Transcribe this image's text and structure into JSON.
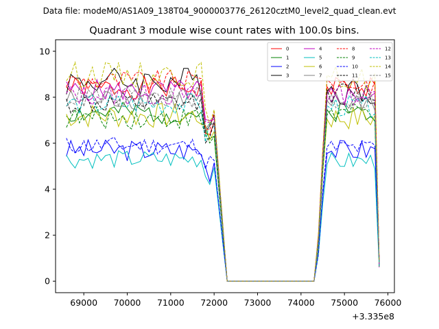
{
  "chart_data": {
    "type": "line",
    "suptitle": "Data file: modeM0/AS1A09_138T04_9000003776_26120cztM0_level2_quad_clean.evt",
    "title": "Quadrant 3 module wise count rates with 100.0s bins.",
    "xlabel": "",
    "ylabel": "",
    "x_offset_label": "+3.335e8",
    "xlim": [
      68350,
      76150
    ],
    "ylim": [
      -0.5,
      10.5
    ],
    "x_ticks": [
      69000,
      70000,
      71000,
      72000,
      73000,
      74000,
      75000,
      76000
    ],
    "y_ticks": [
      0,
      2,
      4,
      6,
      8,
      10
    ],
    "x_tick_labels": [
      "69000",
      "70000",
      "71000",
      "72000",
      "73000",
      "74000",
      "75000",
      "76000"
    ],
    "y_tick_labels": [
      "0",
      "2",
      "4",
      "6",
      "8",
      "10"
    ],
    "legend_position": "top-right",
    "series": [
      {
        "name": "0",
        "color": "#ff0000",
        "dash": "solid",
        "level1": 8.4,
        "level2": 8.5,
        "dip": 6.6,
        "amp": 0.3,
        "seed": 1
      },
      {
        "name": "1",
        "color": "#008000",
        "dash": "solid",
        "level1": 7.3,
        "level2": 7.4,
        "dip": 6.0,
        "amp": 0.3,
        "seed": 2
      },
      {
        "name": "2",
        "color": "#0000ff",
        "dash": "solid",
        "level1": 5.7,
        "level2": 5.7,
        "dip": 4.9,
        "amp": 0.3,
        "seed": 3
      },
      {
        "name": "3",
        "color": "#000000",
        "dash": "solid",
        "level1": 8.7,
        "level2": 8.3,
        "dip": 6.9,
        "amp": 0.4,
        "seed": 4
      },
      {
        "name": "4",
        "color": "#bf00bf",
        "dash": "solid",
        "level1": 8.3,
        "level2": 8.1,
        "dip": 6.7,
        "amp": 0.3,
        "seed": 5
      },
      {
        "name": "5",
        "color": "#00bfbf",
        "dash": "solid",
        "level1": 5.3,
        "level2": 5.2,
        "dip": 4.7,
        "amp": 0.25,
        "seed": 6
      },
      {
        "name": "6",
        "color": "#bfbf00",
        "dash": "solid",
        "level1": 7.2,
        "level2": 7.1,
        "dip": 6.2,
        "amp": 0.35,
        "seed": 7
      },
      {
        "name": "7",
        "color": "#808080",
        "dash": "solid",
        "level1": 7.9,
        "level2": 7.8,
        "dip": 6.5,
        "amp": 0.3,
        "seed": 8
      },
      {
        "name": "8",
        "color": "#ff0000",
        "dash": "dashed",
        "level1": 8.7,
        "level2": 8.6,
        "dip": 7.0,
        "amp": 0.3,
        "seed": 9
      },
      {
        "name": "9",
        "color": "#008000",
        "dash": "dashed",
        "level1": 7.1,
        "level2": 7.3,
        "dip": 6.0,
        "amp": 0.3,
        "seed": 10
      },
      {
        "name": "10",
        "color": "#0000ff",
        "dash": "dashed",
        "level1": 5.9,
        "level2": 5.8,
        "dip": 5.0,
        "amp": 0.25,
        "seed": 11
      },
      {
        "name": "11",
        "color": "#000000",
        "dash": "dashed",
        "level1": 7.7,
        "level2": 8.2,
        "dip": 6.6,
        "amp": 0.3,
        "seed": 12
      },
      {
        "name": "12",
        "color": "#bf00bf",
        "dash": "dashed",
        "level1": 8.1,
        "level2": 8.1,
        "dip": 6.8,
        "amp": 0.3,
        "seed": 13
      },
      {
        "name": "13",
        "color": "#00bfbf",
        "dash": "dashed",
        "level1": 7.7,
        "level2": 7.6,
        "dip": 6.4,
        "amp": 0.3,
        "seed": 14
      },
      {
        "name": "14",
        "color": "#bfbf00",
        "dash": "dashed",
        "level1": 9.0,
        "level2": 8.8,
        "dip": 7.1,
        "amp": 0.35,
        "seed": 15
      },
      {
        "name": "15",
        "color": "#808080",
        "dash": "dashed",
        "level1": 8.0,
        "level2": 7.9,
        "dip": 6.6,
        "amp": 0.3,
        "seed": 16
      }
    ],
    "time_profile": {
      "start": 68600,
      "step": 100,
      "end": 75800,
      "drop_start": 71800,
      "drop_end": 72300,
      "gap_end": 74350,
      "rise_end": 74600,
      "final_drop": 75800,
      "final_value": 0.8
    }
  }
}
